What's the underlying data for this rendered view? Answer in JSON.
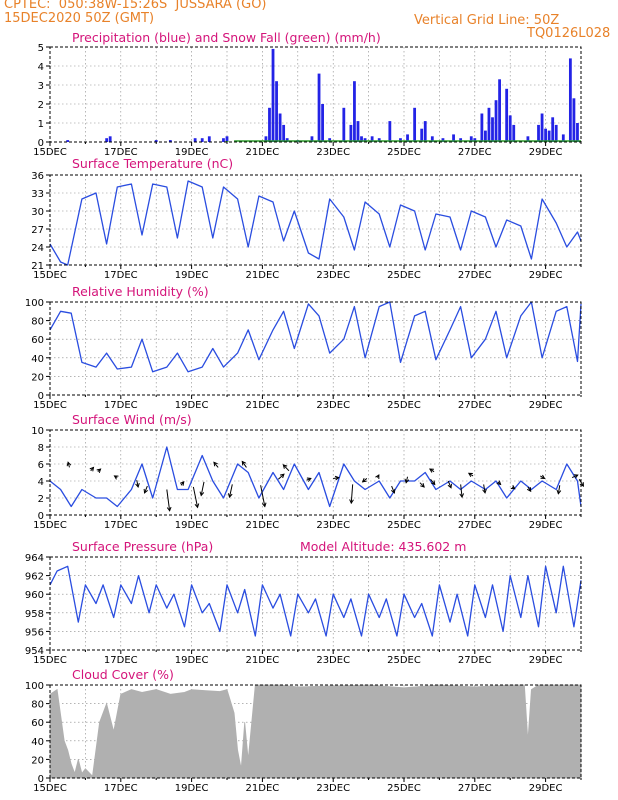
{
  "header": {
    "line1": "CPTEC:  050:38W-15:26S  JUSSARA (GO)",
    "line2": "15DEC2020 50Z (GMT)",
    "vgrid": "Vertical Grid Line: 50Z",
    "code": "TQ0126L028"
  },
  "colors": {
    "header": "#e8822a",
    "title": "#d4147a",
    "series": "#2a4de0",
    "precip": "#2323e6",
    "snow": "#2a9a2a",
    "cloud": "#b0b0b0",
    "grid": "#888888"
  },
  "chart_data": [
    {
      "type": "bar",
      "title": "Precipitation (blue) and Snow Fall (green) (mm/h)",
      "x_range": [
        "15DEC",
        "30DEC"
      ],
      "ylim": [
        0,
        5
      ],
      "yticks": [
        0,
        1,
        2,
        3,
        4,
        5
      ],
      "xticks": [
        "15DEC",
        "17DEC",
        "19DEC",
        "21DEC",
        "23DEC",
        "25DEC",
        "27DEC",
        "29DEC"
      ],
      "series": [
        {
          "name": "Precipitation",
          "x_day": [
            15.5,
            16.6,
            16.7,
            18.0,
            18.4,
            19.1,
            19.3,
            19.5,
            19.9,
            20.0,
            21.1,
            21.2,
            21.3,
            21.4,
            21.5,
            21.6,
            21.7,
            22.0,
            22.4,
            22.6,
            22.7,
            22.9,
            23.3,
            23.5,
            23.6,
            23.7,
            23.8,
            23.9,
            24.1,
            24.3,
            24.6,
            24.9,
            25.1,
            25.3,
            25.5,
            25.6,
            25.8,
            26.1,
            26.4,
            26.6,
            26.9,
            27.0,
            27.2,
            27.3,
            27.4,
            27.5,
            27.6,
            27.7,
            27.9,
            28.0,
            28.1,
            28.5,
            28.8,
            28.9,
            29.0,
            29.1,
            29.2,
            29.3,
            29.5,
            29.7,
            29.8,
            29.9
          ],
          "values": [
            0.1,
            0.2,
            0.3,
            0.1,
            0.1,
            0.2,
            0.2,
            0.3,
            0.2,
            0.3,
            0.3,
            1.8,
            4.9,
            3.2,
            1.5,
            0.9,
            0.2,
            0.1,
            0.3,
            3.6,
            2.0,
            0.2,
            1.8,
            0.9,
            3.2,
            1.1,
            0.3,
            0.2,
            0.3,
            0.2,
            1.1,
            0.2,
            0.4,
            1.8,
            0.7,
            1.1,
            0.3,
            0.2,
            0.4,
            0.2,
            0.3,
            0.2,
            1.5,
            0.6,
            1.8,
            1.3,
            2.2,
            3.3,
            2.8,
            1.4,
            0.9,
            0.3,
            0.9,
            1.5,
            0.7,
            0.6,
            1.3,
            0.9,
            0.4,
            4.4,
            2.3,
            1.0
          ]
        },
        {
          "name": "Snow Fall",
          "x_day": [
            20.0,
            25.0
          ],
          "values": [
            0.05,
            0.05
          ]
        }
      ]
    },
    {
      "type": "line",
      "title": "Surface Temperature (nC)",
      "ylim": [
        21,
        36
      ],
      "yticks": [
        21,
        24,
        27,
        30,
        33,
        36
      ],
      "xticks": [
        "15DEC",
        "17DEC",
        "19DEC",
        "21DEC",
        "23DEC",
        "25DEC",
        "27DEC",
        "29DEC"
      ],
      "series": [
        {
          "name": "Temperature",
          "x_day": [
            15.0,
            15.3,
            15.5,
            15.9,
            16.3,
            16.6,
            16.9,
            17.3,
            17.6,
            17.9,
            18.3,
            18.6,
            18.9,
            19.3,
            19.6,
            19.9,
            20.3,
            20.6,
            20.9,
            21.3,
            21.6,
            21.9,
            22.3,
            22.6,
            22.9,
            23.3,
            23.6,
            23.9,
            24.3,
            24.6,
            24.9,
            25.3,
            25.6,
            25.9,
            26.3,
            26.6,
            26.9,
            27.3,
            27.6,
            27.9,
            28.3,
            28.6,
            28.9,
            29.3,
            29.6,
            29.9,
            30.0
          ],
          "values": [
            24.5,
            21.5,
            21.0,
            32.0,
            33.0,
            24.5,
            34.0,
            34.5,
            26.0,
            34.5,
            34.0,
            25.5,
            35.0,
            34.0,
            25.5,
            34.0,
            32.0,
            24.0,
            32.5,
            31.5,
            25.0,
            30.0,
            23.0,
            22.0,
            32.0,
            29.0,
            23.5,
            31.5,
            29.5,
            24.0,
            31.0,
            30.0,
            23.5,
            29.5,
            29.0,
            23.5,
            30.0,
            29.0,
            24.0,
            28.5,
            27.5,
            22.0,
            32.0,
            28.0,
            24.0,
            26.5,
            25.0
          ]
        }
      ]
    },
    {
      "type": "line",
      "title": "Relative Humidity (%)",
      "ylim": [
        0,
        100
      ],
      "yticks": [
        0,
        20,
        40,
        60,
        80,
        100
      ],
      "xticks": [
        "15DEC",
        "17DEC",
        "19DEC",
        "21DEC",
        "23DEC",
        "25DEC",
        "27DEC",
        "29DEC"
      ],
      "series": [
        {
          "name": "Humidity",
          "x_day": [
            15.0,
            15.3,
            15.6,
            15.9,
            16.3,
            16.6,
            16.9,
            17.3,
            17.6,
            17.9,
            18.3,
            18.6,
            18.9,
            19.3,
            19.6,
            19.9,
            20.3,
            20.6,
            20.9,
            21.3,
            21.6,
            21.9,
            22.3,
            22.6,
            22.9,
            23.3,
            23.6,
            23.9,
            24.3,
            24.6,
            24.9,
            25.3,
            25.6,
            25.9,
            26.3,
            26.6,
            26.9,
            27.3,
            27.6,
            27.9,
            28.3,
            28.6,
            28.9,
            29.3,
            29.6,
            29.9,
            30.0
          ],
          "values": [
            70,
            90,
            88,
            35,
            30,
            45,
            28,
            30,
            60,
            25,
            30,
            45,
            25,
            30,
            50,
            30,
            45,
            70,
            38,
            70,
            90,
            50,
            98,
            85,
            45,
            60,
            95,
            40,
            95,
            100,
            35,
            85,
            90,
            38,
            70,
            95,
            40,
            60,
            90,
            40,
            85,
            100,
            40,
            90,
            95,
            36,
            98
          ]
        }
      ]
    },
    {
      "type": "line",
      "title": "Surface Wind (m/s)",
      "ylim": [
        0,
        10
      ],
      "yticks": [
        0,
        2,
        4,
        6,
        8,
        10
      ],
      "xticks": [
        "15DEC",
        "17DEC",
        "19DEC",
        "21DEC",
        "23DEC",
        "25DEC",
        "27DEC",
        "29DEC"
      ],
      "series": [
        {
          "name": "Wind speed",
          "x_day": [
            15.0,
            15.3,
            15.6,
            15.9,
            16.3,
            16.6,
            16.9,
            17.3,
            17.6,
            17.9,
            18.3,
            18.6,
            18.9,
            19.3,
            19.6,
            19.9,
            20.3,
            20.6,
            20.9,
            21.3,
            21.6,
            21.9,
            22.3,
            22.6,
            22.9,
            23.3,
            23.6,
            23.9,
            24.3,
            24.6,
            24.9,
            25.3,
            25.6,
            25.9,
            26.3,
            26.6,
            26.9,
            27.3,
            27.6,
            27.9,
            28.3,
            28.6,
            28.9,
            29.3,
            29.6,
            29.9,
            30.0
          ],
          "values": [
            4,
            3,
            1,
            3,
            2,
            2,
            1,
            3,
            6,
            2,
            8,
            3,
            3,
            7,
            4,
            2,
            6,
            5,
            2,
            5,
            3,
            6,
            3,
            5,
            1,
            6,
            4,
            3,
            4,
            2,
            4,
            4,
            5,
            3,
            4,
            3,
            4,
            3,
            4,
            2,
            4,
            3,
            4,
            3,
            6,
            4,
            1
          ]
        }
      ]
    },
    {
      "type": "line",
      "title": "Surface Pressure (hPa)",
      "annotation": "Model Altitude: 435.602  m",
      "ylim": [
        954,
        964
      ],
      "yticks": [
        954,
        956,
        958,
        960,
        962,
        964
      ],
      "xticks": [
        "15DEC",
        "17DEC",
        "19DEC",
        "21DEC",
        "23DEC",
        "25DEC",
        "27DEC",
        "29DEC"
      ],
      "series": [
        {
          "name": "Pressure",
          "x_day": [
            15.0,
            15.2,
            15.5,
            15.8,
            16.0,
            16.3,
            16.5,
            16.8,
            17.0,
            17.3,
            17.5,
            17.8,
            18.0,
            18.3,
            18.5,
            18.8,
            19.0,
            19.3,
            19.5,
            19.8,
            20.0,
            20.3,
            20.5,
            20.8,
            21.0,
            21.3,
            21.5,
            21.8,
            22.0,
            22.3,
            22.5,
            22.8,
            23.0,
            23.3,
            23.5,
            23.8,
            24.0,
            24.3,
            24.5,
            24.8,
            25.0,
            25.3,
            25.5,
            25.8,
            26.0,
            26.3,
            26.5,
            26.8,
            27.0,
            27.3,
            27.5,
            27.8,
            28.0,
            28.3,
            28.5,
            28.8,
            29.0,
            29.3,
            29.5,
            29.8,
            30.0
          ],
          "values": [
            961,
            962.5,
            963,
            957,
            961,
            959,
            961,
            957.5,
            961,
            959,
            962,
            958,
            961,
            958.5,
            960,
            956.5,
            961,
            958,
            959,
            956,
            961,
            958,
            960.5,
            955.5,
            961,
            958.5,
            960,
            955.5,
            960,
            958,
            959.5,
            955.5,
            960,
            957.5,
            959.5,
            955.5,
            960,
            957.5,
            959.5,
            955.5,
            960,
            957.5,
            959,
            955.5,
            961,
            957,
            960,
            955.5,
            961,
            957.5,
            961,
            956,
            962,
            957.5,
            962,
            956.5,
            963,
            958,
            963,
            956.5,
            961.5
          ]
        }
      ]
    },
    {
      "type": "area",
      "title": "Cloud Cover (%)",
      "ylim": [
        0,
        100
      ],
      "yticks": [
        0,
        20,
        40,
        60,
        80,
        100
      ],
      "xticks": [
        "15DEC",
        "17DEC",
        "19DEC",
        "21DEC",
        "23DEC",
        "25DEC",
        "27DEC",
        "29DEC"
      ],
      "series": [
        {
          "name": "Cloud cover",
          "x_day": [
            15.0,
            15.2,
            15.4,
            15.5,
            15.6,
            15.7,
            15.8,
            15.9,
            16.0,
            16.2,
            16.4,
            16.5,
            16.6,
            16.8,
            17.0,
            17.3,
            17.6,
            18.0,
            18.4,
            18.8,
            19.0,
            19.4,
            19.8,
            20.0,
            20.2,
            20.3,
            20.4,
            20.5,
            20.6,
            20.8,
            21.0,
            21.5,
            22.0,
            23.0,
            24.0,
            25.0,
            26.0,
            27.0,
            28.0,
            28.4,
            28.5,
            28.6,
            28.8,
            29.0,
            29.5,
            30.0
          ],
          "values": [
            90,
            95,
            40,
            30,
            15,
            5,
            20,
            5,
            10,
            2,
            60,
            70,
            80,
            50,
            90,
            95,
            92,
            95,
            90,
            92,
            95,
            94,
            93,
            95,
            70,
            30,
            10,
            60,
            20,
            100,
            100,
            100,
            98,
            99,
            100,
            97,
            100,
            98,
            100,
            100,
            40,
            95,
            100,
            100,
            100,
            100
          ]
        }
      ]
    }
  ],
  "wind_vectors": [
    {
      "x_day": 15.55,
      "y": 5.6,
      "dx": -0.1,
      "dy": 0.6
    },
    {
      "x_day": 16.15,
      "y": 5.2,
      "dx": 0.2,
      "dy": 0.4
    },
    {
      "x_day": 16.35,
      "y": 5.1,
      "dx": 0.2,
      "dy": 0.3
    },
    {
      "x_day": 16.9,
      "y": 4.4,
      "dx": -0.2,
      "dy": 0.2
    },
    {
      "x_day": 17.45,
      "y": 4.1,
      "dx": 0.1,
      "dy": -0.8
    },
    {
      "x_day": 17.75,
      "y": 3.4,
      "dx": -0.2,
      "dy": -0.8
    },
    {
      "x_day": 18.3,
      "y": 3.0,
      "dx": 0.2,
      "dy": -2.5
    },
    {
      "x_day": 18.7,
      "y": 3.5,
      "dx": 0.2,
      "dy": 0.4
    },
    {
      "x_day": 19.05,
      "y": 3.3,
      "dx": 0.3,
      "dy": -2.4
    },
    {
      "x_day": 19.35,
      "y": 3.9,
      "dx": -0.2,
      "dy": -1.6
    },
    {
      "x_day": 19.75,
      "y": 5.6,
      "dx": -0.3,
      "dy": 0.6
    },
    {
      "x_day": 20.15,
      "y": 3.6,
      "dx": -0.2,
      "dy": -1.5
    },
    {
      "x_day": 20.55,
      "y": 5.6,
      "dx": -0.3,
      "dy": 0.7
    },
    {
      "x_day": 20.95,
      "y": 3.5,
      "dx": 0.3,
      "dy": -2.5
    },
    {
      "x_day": 21.45,
      "y": 4.2,
      "dx": 0.4,
      "dy": 0.6
    },
    {
      "x_day": 21.75,
      "y": 5.2,
      "dx": -0.4,
      "dy": 0.7
    },
    {
      "x_day": 22.25,
      "y": 4.1,
      "dx": 0.3,
      "dy": 0.2
    },
    {
      "x_day": 23.0,
      "y": 4.3,
      "dx": 0.4,
      "dy": 0.1
    },
    {
      "x_day": 23.55,
      "y": 3.6,
      "dx": -0.1,
      "dy": -2.2
    },
    {
      "x_day": 23.95,
      "y": 4.3,
      "dx": -0.3,
      "dy": -0.4
    },
    {
      "x_day": 24.25,
      "y": 4.4,
      "dx": 0.1,
      "dy": 0.3
    },
    {
      "x_day": 24.65,
      "y": 3.4,
      "dx": 0.2,
      "dy": -0.8
    },
    {
      "x_day": 25.1,
      "y": 4.5,
      "dx": -0.1,
      "dy": -0.7
    },
    {
      "x_day": 25.45,
      "y": 3.8,
      "dx": 0.3,
      "dy": -0.5
    },
    {
      "x_day": 25.75,
      "y": 4.2,
      "dx": 0.3,
      "dy": -0.6
    },
    {
      "x_day": 25.85,
      "y": 5.1,
      "dx": -0.3,
      "dy": 0.3
    },
    {
      "x_day": 26.25,
      "y": 4.0,
      "dx": 0.2,
      "dy": -0.8
    },
    {
      "x_day": 26.6,
      "y": 3.6,
      "dx": 0.1,
      "dy": -1.5
    },
    {
      "x_day": 26.95,
      "y": 4.6,
      "dx": -0.3,
      "dy": 0.3
    },
    {
      "x_day": 27.25,
      "y": 3.6,
      "dx": 0.1,
      "dy": -1.0
    },
    {
      "x_day": 27.65,
      "y": 3.9,
      "dx": 0.2,
      "dy": -0.3
    },
    {
      "x_day": 28.05,
      "y": 3.3,
      "dx": 0.2,
      "dy": -0.2
    },
    {
      "x_day": 28.5,
      "y": 3.3,
      "dx": 0.2,
      "dy": -0.5
    },
    {
      "x_day": 28.85,
      "y": 4.6,
      "dx": 0.3,
      "dy": -0.3
    },
    {
      "x_day": 29.4,
      "y": 3.5,
      "dx": -0.1,
      "dy": -1.0
    },
    {
      "x_day": 29.75,
      "y": 4.4,
      "dx": 0.4,
      "dy": 0.3
    },
    {
      "x_day": 29.95,
      "y": 4.2,
      "dx": 0.3,
      "dy": -0.8
    }
  ]
}
